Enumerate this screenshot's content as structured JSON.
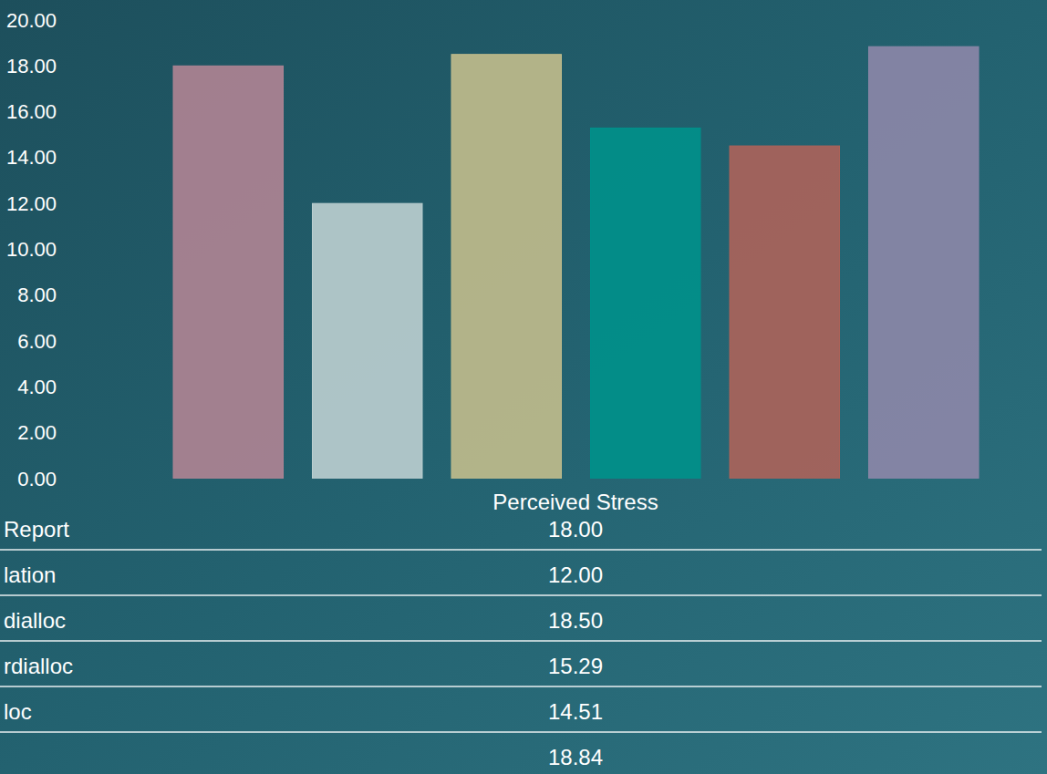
{
  "chart_data": {
    "type": "bar",
    "categories": [
      "Report",
      "lation",
      "dialloc",
      "rdialloc",
      "loc",
      null
    ],
    "series": [
      {
        "name": "Perceived Stress",
        "values": [
          18.0,
          12.0,
          18.5,
          15.29,
          14.51,
          18.84
        ],
        "value_labels": [
          "18.00",
          "12.00",
          "18.50",
          "15.29",
          "14.51",
          "18.84"
        ]
      }
    ],
    "colors": [
      "#b08494",
      "#bccfd0",
      "#c2bd8c",
      "#00918b",
      "#ad635a",
      "#8d87a8"
    ],
    "ylim": [
      0,
      20
    ],
    "yticks": [
      {
        "value": 0,
        "label": "0.00"
      },
      {
        "value": 2,
        "label": "2.00"
      },
      {
        "value": 4,
        "label": "4.00"
      },
      {
        "value": 6,
        "label": "6.00"
      },
      {
        "value": 8,
        "label": "8.00"
      },
      {
        "value": 10,
        "label": "10.00"
      },
      {
        "value": 12,
        "label": "12.00"
      },
      {
        "value": 14,
        "label": "14.00"
      },
      {
        "value": 16,
        "label": "16.00"
      },
      {
        "value": 18,
        "label": "18.00"
      },
      {
        "value": 20,
        "label": "20.00"
      }
    ],
    "grid": false
  }
}
